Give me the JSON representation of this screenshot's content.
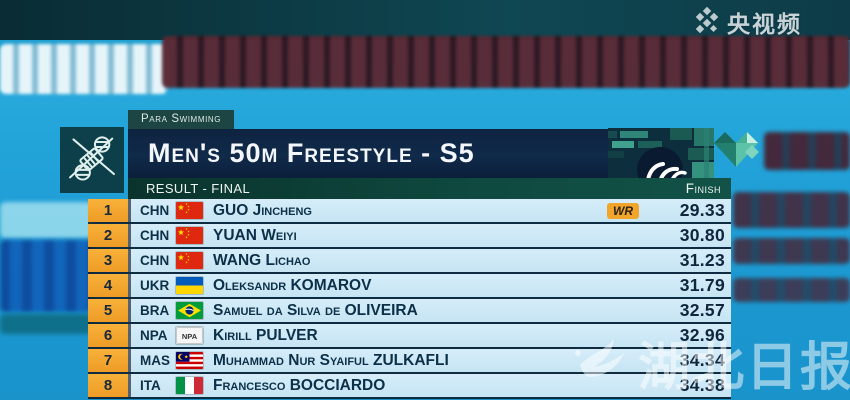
{
  "broadcast": {
    "channel_logo": "央视频",
    "watermark": "湖北日报"
  },
  "header": {
    "tag": "Para Swimming",
    "title": "Men's 50m Freestyle - S5",
    "result_label": "RESULT - FINAL",
    "finish_label": "Finish"
  },
  "icons": {
    "left_box": "para-swimming-pictogram",
    "deco": [
      "paralympic-agitos-icon",
      "heart-mosaic-icon"
    ],
    "channel": "cctv-diamond-grid-icon",
    "watermark_bird": "hubei-daily-bird-icon"
  },
  "colors": {
    "rank_orange": "#F2A33C",
    "row_blue": "#CDE8F6",
    "title_navy": "#0E2340",
    "result_teal": "#0F4A40",
    "wr_badge": "#F2A52B",
    "water_blue": "#1F9FD6"
  },
  "table": {
    "columns": [
      "rank",
      "noc",
      "flag",
      "name",
      "record",
      "time"
    ],
    "rows": [
      {
        "rank": "1",
        "noc": "CHN",
        "flag": "chn",
        "name": "GUO Jincheng",
        "badge": "WR",
        "time": "29.33"
      },
      {
        "rank": "2",
        "noc": "CHN",
        "flag": "chn",
        "name": "YUAN Weiyi",
        "badge": "",
        "time": "30.80"
      },
      {
        "rank": "3",
        "noc": "CHN",
        "flag": "chn",
        "name": "WANG Lichao",
        "badge": "",
        "time": "31.23"
      },
      {
        "rank": "4",
        "noc": "UKR",
        "flag": "ukr",
        "name": "Oleksandr KOMAROV",
        "badge": "",
        "time": "31.79"
      },
      {
        "rank": "5",
        "noc": "BRA",
        "flag": "bra",
        "name": "Samuel da Silva de OLIVEIRA",
        "badge": "",
        "time": "32.57"
      },
      {
        "rank": "6",
        "noc": "NPA",
        "flag": "npa",
        "name": "Kirill PULVER",
        "badge": "",
        "time": "32.96"
      },
      {
        "rank": "7",
        "noc": "MAS",
        "flag": "mas",
        "name": "Muhammad Nur Syaiful ZULKAFLI",
        "badge": "",
        "time": "34.34"
      },
      {
        "rank": "8",
        "noc": "ITA",
        "flag": "ita",
        "name": "Francesco BOCCIARDO",
        "badge": "",
        "time": "34.38"
      }
    ]
  }
}
